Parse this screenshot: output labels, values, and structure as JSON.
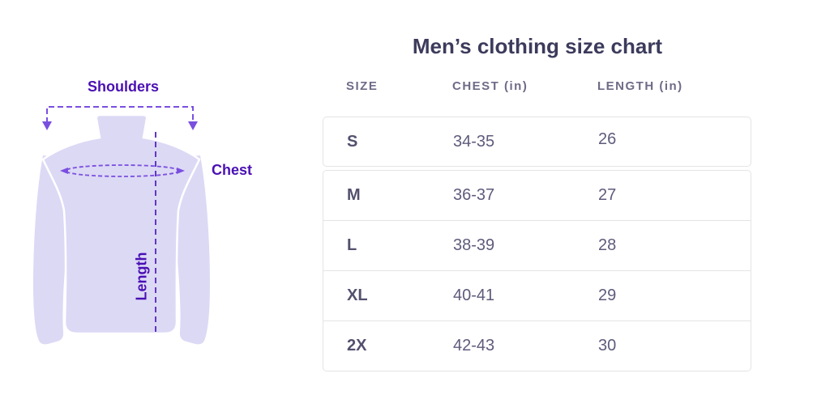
{
  "colors": {
    "bg": "#ffffff",
    "accent": "#4a10b4",
    "dash": "#7a4fe0",
    "dashdark": "#6236c4",
    "shirt": "#dcd9f5",
    "title": "#3c3b5c",
    "header": "#6e6b87",
    "sizetext": "#53506e",
    "valuetext": "#5e5b7b",
    "border": "#e4e4e6"
  },
  "title": "Men’s clothing size chart",
  "diagram": {
    "shoulders_label": "Shoulders",
    "chest_label": "Chest",
    "length_label": "Length"
  },
  "table": {
    "headers": [
      "SIZE",
      "CHEST (in)",
      "LENGTH (in)"
    ],
    "rows": [
      {
        "size": "S",
        "chest": "34-35",
        "length": "26"
      },
      {
        "size": "M",
        "chest": "36-37",
        "length": "27"
      },
      {
        "size": "L",
        "chest": "38-39",
        "length": "28"
      },
      {
        "size": "XL",
        "chest": "40-41",
        "length": "29"
      },
      {
        "size": "2X",
        "chest": "42-43",
        "length": "30"
      }
    ]
  },
  "chart_data": {
    "type": "table",
    "title": "Men’s clothing size chart",
    "columns": [
      "SIZE",
      "CHEST (in)",
      "LENGTH (in)"
    ],
    "rows": [
      [
        "S",
        "34-35",
        "26"
      ],
      [
        "M",
        "36-37",
        "27"
      ],
      [
        "L",
        "38-39",
        "28"
      ],
      [
        "XL",
        "40-41",
        "29"
      ],
      [
        "2X",
        "42-43",
        "30"
      ]
    ],
    "units": "inches",
    "annotations": [
      "Shoulders",
      "Chest",
      "Length"
    ],
    "legend_position": "none",
    "grid": false
  }
}
